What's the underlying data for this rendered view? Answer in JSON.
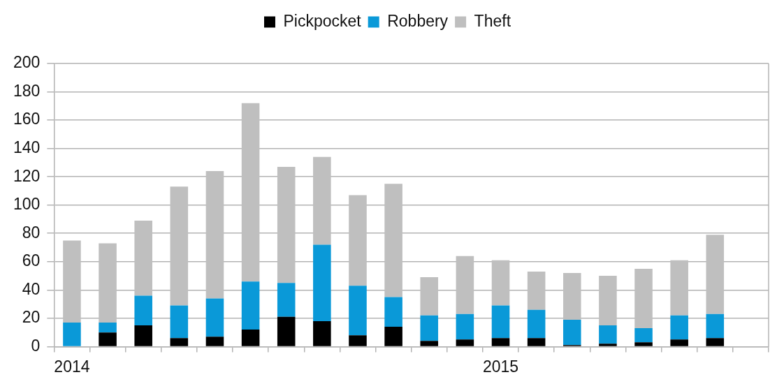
{
  "chart_data": {
    "type": "bar",
    "stacked": true,
    "categories": [
      "2014",
      null,
      null,
      null,
      null,
      null,
      null,
      null,
      null,
      null,
      null,
      null,
      "2015",
      null,
      null,
      null,
      null,
      null,
      null,
      null
    ],
    "series": [
      {
        "name": "Pickpocket",
        "color": "#000000",
        "values": [
          0,
          10,
          15,
          6,
          7,
          12,
          21,
          18,
          8,
          14,
          4,
          5,
          6,
          6,
          1,
          2,
          3,
          5,
          6,
          null
        ]
      },
      {
        "name": "Robbery",
        "color": "#0a99d8",
        "values": [
          17,
          7,
          21,
          23,
          27,
          34,
          24,
          54,
          35,
          21,
          18,
          18,
          23,
          20,
          18,
          13,
          10,
          17,
          17,
          null
        ]
      },
      {
        "name": "Theft",
        "color": "#bfbfbf",
        "values": [
          58,
          56,
          53,
          84,
          90,
          126,
          82,
          62,
          64,
          80,
          27,
          41,
          32,
          27,
          33,
          35,
          42,
          39,
          56,
          null
        ]
      }
    ],
    "ylim": [
      0,
      200
    ],
    "yticks": [
      0,
      20,
      40,
      60,
      80,
      100,
      120,
      140,
      160,
      180,
      200
    ],
    "grid": "y",
    "legend": "top"
  }
}
